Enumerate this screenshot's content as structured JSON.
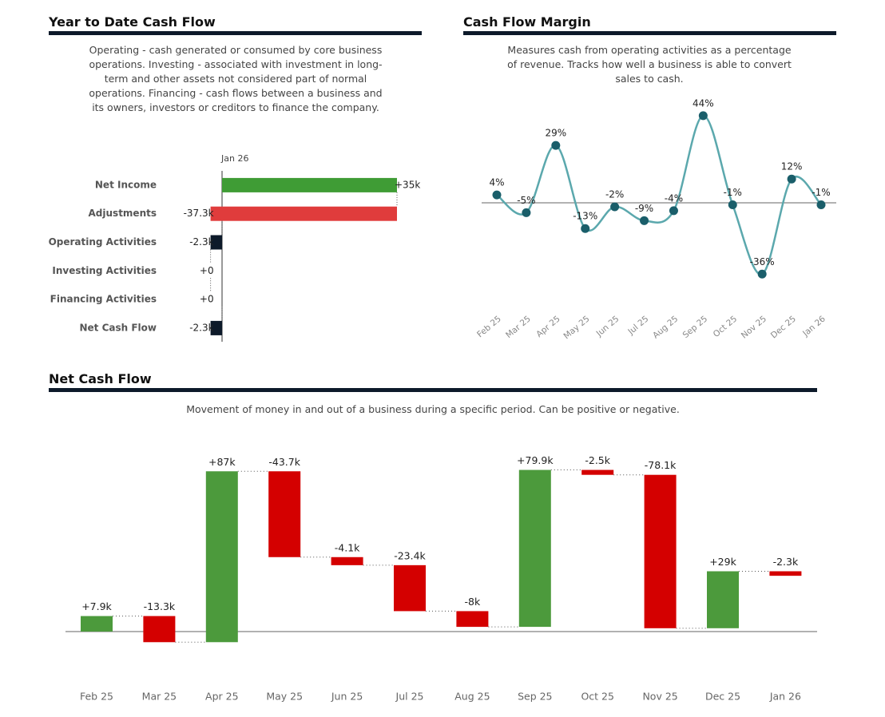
{
  "chart_data": [
    {
      "type": "hbar-waterfall",
      "title": "Year to Date Cash Flow",
      "subtitle": "Operating - cash generated or consumed by core business operations.  Investing - associated with investment in long-term and other assets not considered part of normal operations.  Financing - cash flows between a business and its owners, investors or creditors to finance the company.",
      "series_name": "Jan 26",
      "categories": [
        "Net Income",
        "Adjustments",
        "Operating Activities",
        "Investing Activities",
        "Financing Activities",
        "Net Cash Flow"
      ],
      "values": [
        35,
        -37.3,
        -2.3,
        0,
        0,
        -2.3
      ],
      "value_labels": [
        "+35k",
        "-37.3k",
        "-2.3k",
        "+0",
        "+0",
        "-2.3k"
      ],
      "is_total": [
        false,
        false,
        true,
        false,
        false,
        true
      ],
      "colors": {
        "increase": "#3f9c35",
        "decrease": "#e03c3c",
        "total": "#0d1a2a"
      }
    },
    {
      "type": "line",
      "title": "Cash Flow Margin",
      "subtitle": "Measures cash from operating activities as a percentage of revenue. Tracks how well a business is able to convert sales to cash.",
      "categories": [
        "Feb 25",
        "Mar 25",
        "Apr 25",
        "May 25",
        "Jun 25",
        "Jul 25",
        "Aug 25",
        "Sep 25",
        "Oct 25",
        "Nov 25",
        "Dec 25",
        "Jan 26"
      ],
      "values": [
        4,
        -5,
        29,
        -13,
        -2,
        -9,
        -4,
        44,
        -1,
        -36,
        12,
        -1
      ],
      "value_labels": [
        "4%",
        "-5%",
        "29%",
        "-13%",
        "-2%",
        "-9%",
        "-4%",
        "44%",
        "-1%",
        "-36%",
        "12%",
        "-1%"
      ],
      "color": "#5ba8ad",
      "marker_color": "#1a5e6a"
    },
    {
      "type": "waterfall",
      "title": "Net Cash Flow",
      "subtitle": "Movement of money in and out of a business during a specific period. Can be positive or negative.",
      "categories": [
        "Feb 25",
        "Mar 25",
        "Apr 25",
        "May 25",
        "Jun 25",
        "Jul 25",
        "Aug 25",
        "Sep 25",
        "Oct 25",
        "Nov 25",
        "Dec 25",
        "Jan 26"
      ],
      "values": [
        7.9,
        -13.3,
        87,
        -43.7,
        -4.1,
        -23.4,
        -8,
        79.9,
        -2.5,
        -78.1,
        29,
        -2.3
      ],
      "value_labels": [
        "+7.9k",
        "-13.3k",
        "+87k",
        "-43.7k",
        "-4.1k",
        "-23.4k",
        "-8k",
        "+79.9k",
        "-2.5k",
        "-78.1k",
        "+29k",
        "-2.3k"
      ],
      "colors": {
        "increase": "#4c9a3c",
        "decrease": "#d40000"
      }
    }
  ]
}
